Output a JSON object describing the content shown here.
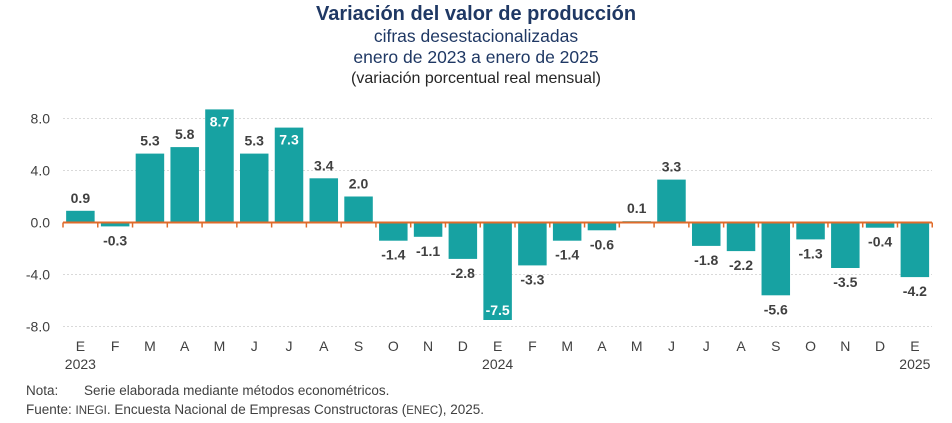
{
  "title": "Variación del valor de producción",
  "subtitle1": "cifras desestacionalizadas",
  "subtitle2": "enero de 2023 a enero de 2025",
  "subtitle3": "(variación porcentual real mensual)",
  "notes": {
    "nota_label": "Nota:",
    "nota_text": "Serie elaborada mediante métodos econométricos.",
    "fuente_label": "Fuente:",
    "fuente_inegi": "INEGI",
    "fuente_mid": ". Encuesta Nacional de Empresas Constructoras (",
    "fuente_enec": "ENEC",
    "fuente_end": "), 2025."
  },
  "colors": {
    "bar": "#17a2a2",
    "baseline": "#e06b2a",
    "grid": "#d9d9d9",
    "text": "#404040"
  },
  "chart_data": {
    "type": "bar",
    "categories": [
      "E",
      "F",
      "M",
      "A",
      "M",
      "J",
      "J",
      "A",
      "S",
      "O",
      "N",
      "D",
      "E",
      "F",
      "M",
      "A",
      "M",
      "J",
      "J",
      "A",
      "S",
      "O",
      "N",
      "D",
      "E"
    ],
    "year_labels": [
      {
        "index": 0,
        "label": "2023"
      },
      {
        "index": 12,
        "label": "2024"
      },
      {
        "index": 24,
        "label": "2025"
      }
    ],
    "values": [
      0.9,
      -0.3,
      5.3,
      5.8,
      8.7,
      5.3,
      7.3,
      3.4,
      2.0,
      -1.4,
      -1.1,
      -2.8,
      -7.5,
      -3.3,
      -1.4,
      -0.6,
      0.1,
      3.3,
      -1.8,
      -2.2,
      -5.6,
      -1.3,
      -3.5,
      -0.4,
      -4.2
    ],
    "labels": [
      "0.9",
      "-0.3",
      "5.3",
      "5.8",
      "8.7",
      "5.3",
      "7.3",
      "3.4",
      "2.0",
      "-1.4",
      "-1.1",
      "-2.8",
      "-7.5",
      "-3.3",
      "-1.4",
      "-0.6",
      "0.1",
      "3.3",
      "-1.8",
      "-2.2",
      "-5.6",
      "-1.3",
      "-3.5",
      "-0.4",
      "-4.2"
    ],
    "inside_label_indices": [
      4,
      6,
      12
    ],
    "yticks": [
      "8.0",
      "4.0",
      "0.0",
      "-4.0",
      "-8.0"
    ],
    "ytick_values": [
      8,
      4,
      0,
      -4,
      -8
    ],
    "ylim": [
      -8,
      8
    ],
    "grid": true
  }
}
